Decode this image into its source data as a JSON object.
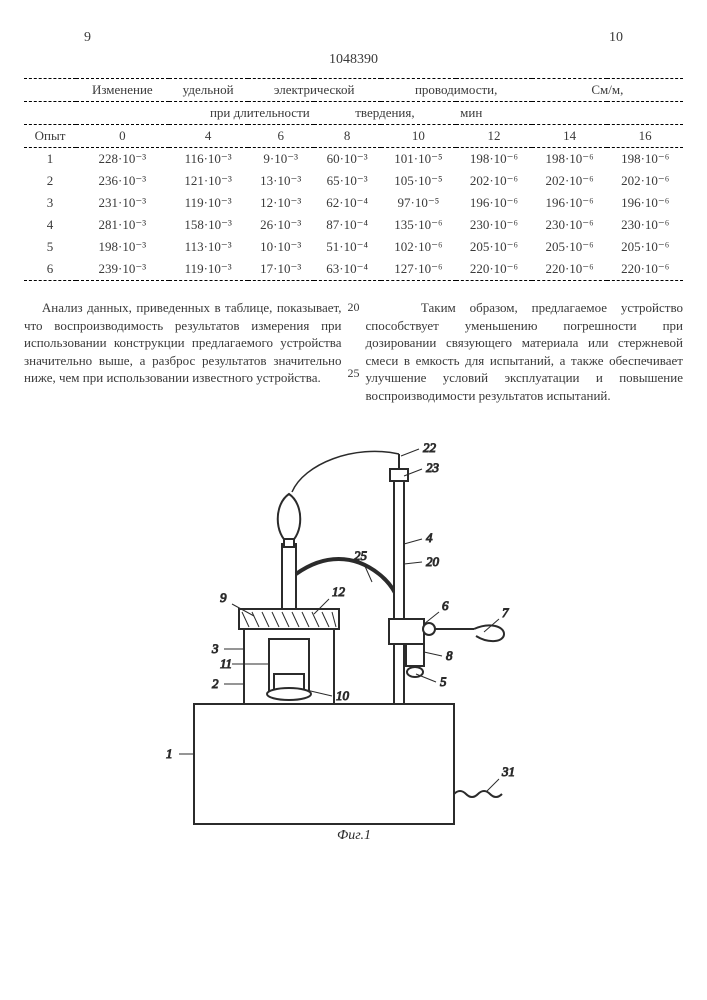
{
  "page_left": "9",
  "page_right": "10",
  "doc_id": "1048390",
  "table": {
    "title_line1": [
      "Изменение",
      "удельной",
      "электрической",
      "проводимости,",
      "См/м,"
    ],
    "title_line2": [
      "при длительности",
      "твердения,",
      "мин"
    ],
    "col_opyt": "Опыт",
    "columns": [
      "0",
      "4",
      "6",
      "8",
      "10",
      "12",
      "14",
      "16"
    ],
    "rows": [
      {
        "n": "1",
        "c": [
          "228·10⁻³",
          "116·10⁻³",
          "9·10⁻³",
          "60·10⁻³",
          "101·10⁻⁵",
          "198·10⁻⁶",
          "198·10⁻⁶",
          "198·10⁻⁶"
        ]
      },
      {
        "n": "2",
        "c": [
          "236·10⁻³",
          "121·10⁻³",
          "13·10⁻³",
          "65·10⁻³",
          "105·10⁻⁵",
          "202·10⁻⁶",
          "202·10⁻⁶",
          "202·10⁻⁶"
        ]
      },
      {
        "n": "3",
        "c": [
          "231·10⁻³",
          "119·10⁻³",
          "12·10⁻³",
          "62·10⁻⁴",
          "97·10⁻⁵",
          "196·10⁻⁶",
          "196·10⁻⁶",
          "196·10⁻⁶"
        ]
      },
      {
        "n": "4",
        "c": [
          "281·10⁻³",
          "158·10⁻³",
          "26·10⁻³",
          "87·10⁻⁴",
          "135·10⁻⁶",
          "230·10⁻⁶",
          "230·10⁻⁶",
          "230·10⁻⁶"
        ]
      },
      {
        "n": "5",
        "c": [
          "198·10⁻³",
          "113·10⁻³",
          "10·10⁻³",
          "51·10⁻⁴",
          "102·10⁻⁶",
          "205·10⁻⁶",
          "205·10⁻⁶",
          "205·10⁻⁶"
        ]
      },
      {
        "n": "6",
        "c": [
          "239·10⁻³",
          "119·10⁻³",
          "17·10⁻³",
          "63·10⁻⁴",
          "127·10⁻⁶",
          "220·10⁻⁶",
          "220·10⁻⁶",
          "220·10⁻⁶"
        ]
      }
    ]
  },
  "para_left": "Анализ данных, приведенных в таблице, показывает, что воспроизводимость результатов измерения при использовании конструкции предлагаемого устройства значительно выше, а разброс результатов значительно ниже, чем при использовании известного устройства.",
  "para_right": "Таким образом, предлагаемое устройство способствует уменьшению погрешности при дозировании связующего материала или стержневой смеси в емкость для испытаний, а также обеспечивает улучшение условий эксплуатации и повышение воспроизводимости результатов испытаний.",
  "figure": {
    "caption": "Фиг.1",
    "labels": [
      "1",
      "2",
      "3",
      "4",
      "5",
      "6",
      "7",
      "8",
      "9",
      "10",
      "11",
      "12",
      "20",
      "22",
      "23",
      "25",
      "31"
    ],
    "colors": {
      "line": "#2b2b2b",
      "hatch": "#2b2b2b",
      "bg": "#ffffff"
    }
  }
}
